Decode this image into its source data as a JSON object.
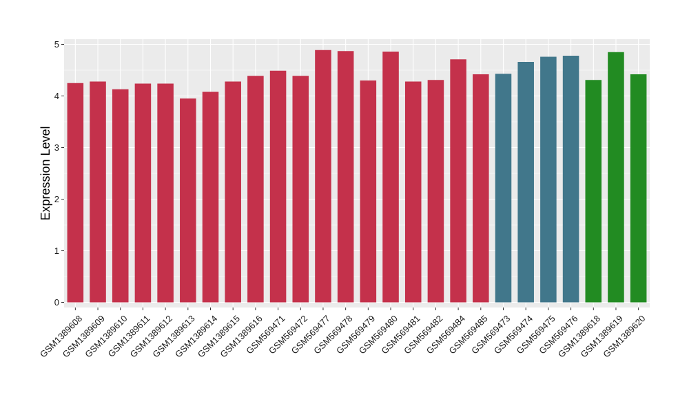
{
  "chart_data": {
    "type": "bar",
    "title": "",
    "xlabel": "",
    "ylabel": "Expression Level",
    "ylim": [
      -0.1,
      5.1
    ],
    "yticks": [
      0,
      1,
      2,
      3,
      4,
      5
    ],
    "grid": true,
    "legend": "none",
    "categories": [
      "GSM1389608",
      "GSM1389609",
      "GSM1389610",
      "GSM1389611",
      "GSM1389612",
      "GSM1389613",
      "GSM1389614",
      "GSM1389615",
      "GSM1389616",
      "GSM569471",
      "GSM569472",
      "GSM569477",
      "GSM569478",
      "GSM569479",
      "GSM569480",
      "GSM569481",
      "GSM569482",
      "GSM569484",
      "GSM569485",
      "GSM569473",
      "GSM569474",
      "GSM569475",
      "GSM569476",
      "GSM1389618",
      "GSM1389619",
      "GSM1389620"
    ],
    "values": [
      4.25,
      4.28,
      4.13,
      4.24,
      4.24,
      3.95,
      4.08,
      4.28,
      4.39,
      4.49,
      4.39,
      4.89,
      4.87,
      4.3,
      4.86,
      4.28,
      4.31,
      4.71,
      4.42,
      4.43,
      4.66,
      4.76,
      4.78,
      4.31,
      4.85,
      4.42
    ],
    "groups": [
      0,
      0,
      0,
      0,
      0,
      0,
      0,
      0,
      0,
      0,
      0,
      0,
      0,
      0,
      0,
      0,
      0,
      0,
      0,
      1,
      1,
      1,
      1,
      2,
      2,
      2
    ],
    "group_colors": [
      "#c4314b",
      "#41778b",
      "#228b22"
    ],
    "panel_background": "#ebebeb",
    "gridline_color": "#ffffff"
  }
}
